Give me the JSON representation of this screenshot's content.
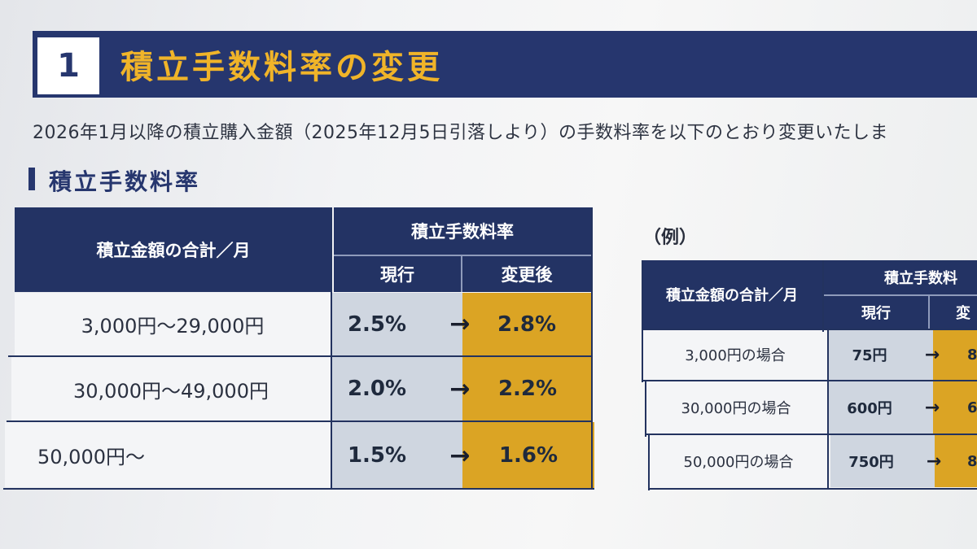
{
  "header": {
    "number": "1",
    "title": "積立手数料率の変更"
  },
  "intro_text": "2026年1月以降の積立購入金額（2025年12月5日引落しより）の手数料率を以下のとおり変更いたしま",
  "section": {
    "title": "積立手数料率"
  },
  "main_table": {
    "col_amount": "積立金額の合計／月",
    "col_rate": "積立手数料率",
    "col_current": "現行",
    "col_after": "変更後",
    "rows": [
      {
        "amount": "3,000円～29,000円",
        "current": "2.5%",
        "arrow": "→",
        "after": "2.8%"
      },
      {
        "amount": "30,000円～49,000円",
        "current": "2.0%",
        "arrow": "→",
        "after": "2.2%"
      },
      {
        "amount": "50,000円～",
        "current": "1.5%",
        "arrow": "→",
        "after": "1.6%"
      }
    ]
  },
  "example": {
    "label": "（例）",
    "col_amount": "積立金額の合計／月",
    "col_rate": "積立手数料",
    "col_current": "現行",
    "col_after": "変",
    "rows": [
      {
        "amount": "3,000円の場合",
        "current": "75円",
        "arrow": "→",
        "after": "8"
      },
      {
        "amount": "30,000円の場合",
        "current": "600円",
        "arrow": "→",
        "after": "6"
      },
      {
        "amount": "50,000円の場合",
        "current": "750円",
        "arrow": "→",
        "after": "8"
      }
    ]
  },
  "colors": {
    "navy": "#26366e",
    "gold_title": "#f0b429",
    "gold_cell": "#dba424",
    "light_blue_cell": "#cfd6e0"
  }
}
